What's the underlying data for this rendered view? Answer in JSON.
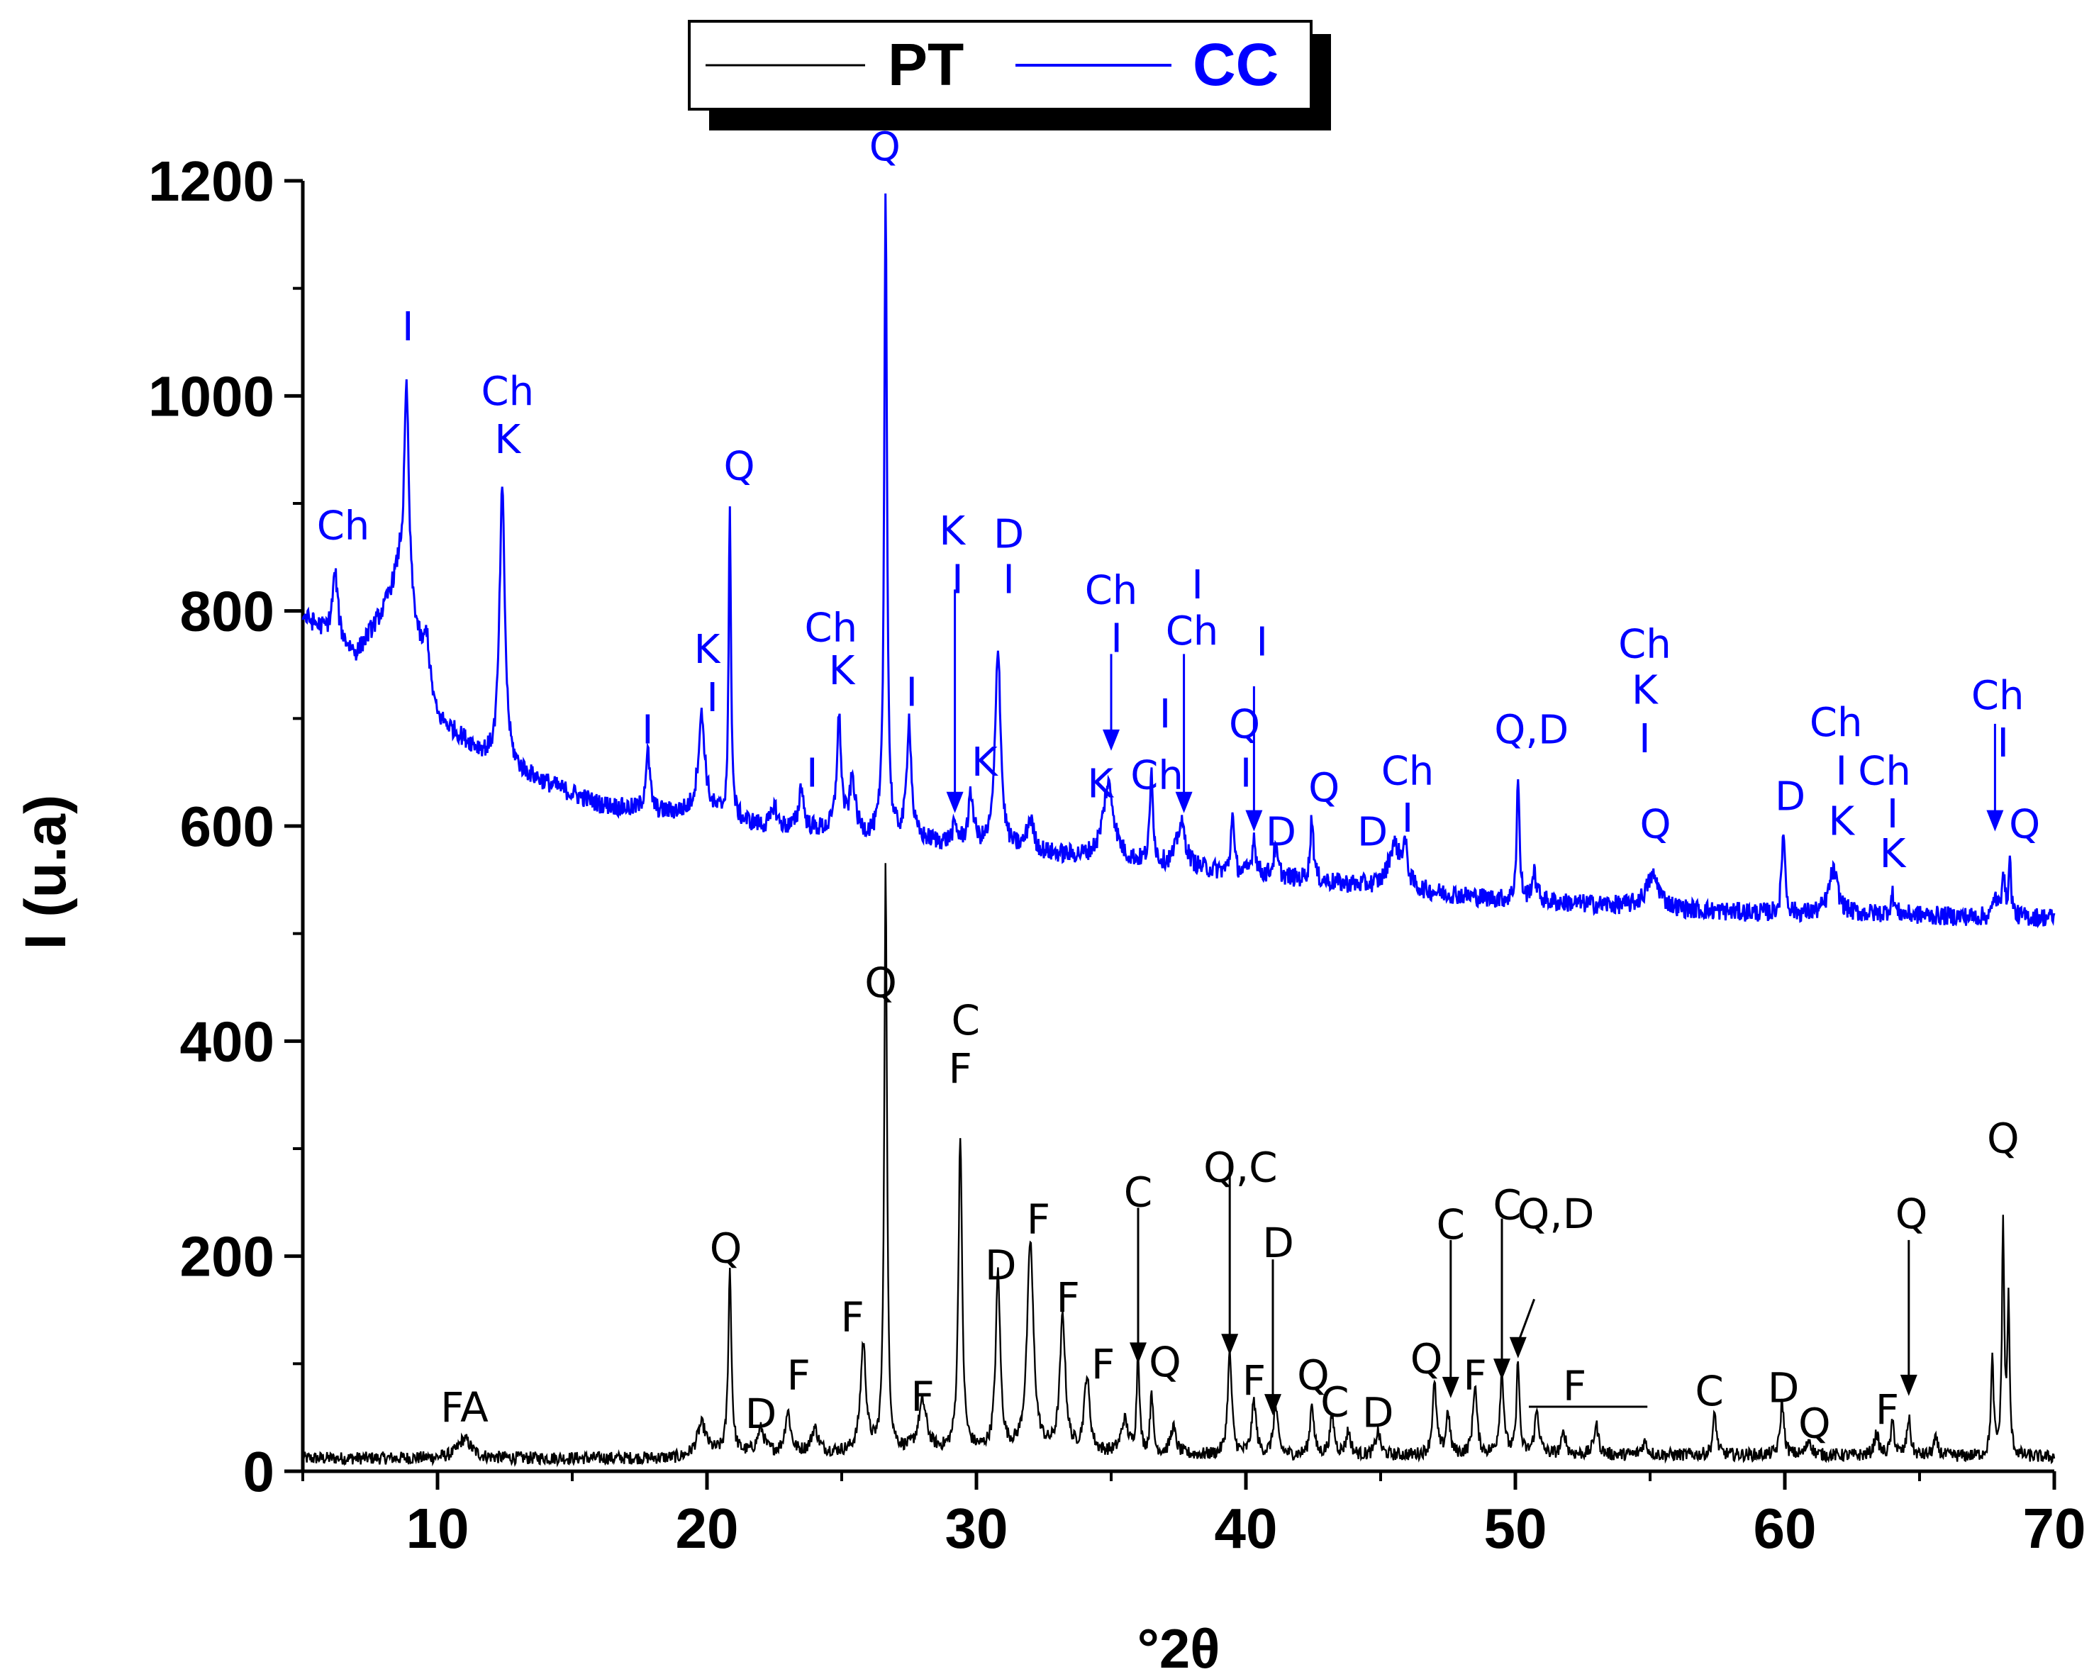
{
  "chart_data": {
    "type": "line",
    "xlabel": "°2θ",
    "ylabel": "I (u.a)",
    "xlim": [
      5,
      70
    ],
    "ylim": [
      0,
      1200
    ],
    "x_ticks": [
      10,
      20,
      30,
      40,
      50,
      60,
      70
    ],
    "y_ticks": [
      0,
      200,
      400,
      600,
      800,
      1000,
      1200
    ],
    "legend": {
      "position": "top-center",
      "entries": [
        {
          "name": "PT",
          "color": "#000000"
        },
        {
          "name": "CC",
          "color": "#0000ff"
        }
      ]
    },
    "series": [
      {
        "name": "PT",
        "color": "#000000",
        "baseline": [
          [
            5,
            12
          ],
          [
            19,
            12
          ],
          [
            20,
            16
          ],
          [
            30,
            18
          ],
          [
            40,
            14
          ],
          [
            50,
            15
          ],
          [
            60,
            15
          ],
          [
            70,
            13
          ]
        ],
        "peaks": [
          [
            11,
            18,
            0.3
          ],
          [
            19.8,
            28,
            0.2
          ],
          [
            20.85,
            170,
            0.07
          ],
          [
            22.0,
            22,
            0.15
          ],
          [
            23.0,
            38,
            0.12
          ],
          [
            24.0,
            22,
            0.15
          ],
          [
            25.8,
            100,
            0.12
          ],
          [
            26.63,
            545,
            0.06
          ],
          [
            28.0,
            45,
            0.18
          ],
          [
            29.4,
            295,
            0.08
          ],
          [
            30.8,
            165,
            0.1
          ],
          [
            32.0,
            195,
            0.14
          ],
          [
            33.2,
            125,
            0.12
          ],
          [
            34.1,
            70,
            0.12
          ],
          [
            35.5,
            30,
            0.15
          ],
          [
            36.0,
            95,
            0.06
          ],
          [
            36.5,
            60,
            0.06
          ],
          [
            37.3,
            25,
            0.12
          ],
          [
            39.4,
            95,
            0.09
          ],
          [
            40.3,
            50,
            0.1
          ],
          [
            41.1,
            45,
            0.1
          ],
          [
            42.45,
            50,
            0.08
          ],
          [
            43.2,
            35,
            0.1
          ],
          [
            43.8,
            22,
            0.1
          ],
          [
            44.9,
            22,
            0.1
          ],
          [
            47.0,
            65,
            0.09
          ],
          [
            47.5,
            40,
            0.08
          ],
          [
            48.5,
            65,
            0.09
          ],
          [
            49.5,
            75,
            0.09
          ],
          [
            50.1,
            90,
            0.06
          ],
          [
            50.8,
            40,
            0.1
          ],
          [
            51.8,
            20,
            0.1
          ],
          [
            53.0,
            28,
            0.1
          ],
          [
            54.8,
            12,
            0.12
          ],
          [
            57.4,
            38,
            0.08
          ],
          [
            59.9,
            50,
            0.08
          ],
          [
            60.9,
            15,
            0.1
          ],
          [
            63.4,
            20,
            0.1
          ],
          [
            64.0,
            30,
            0.08
          ],
          [
            64.6,
            35,
            0.08
          ],
          [
            65.6,
            15,
            0.1
          ],
          [
            67.7,
            88,
            0.06
          ],
          [
            68.1,
            215,
            0.05
          ],
          [
            68.3,
            140,
            0.05
          ]
        ]
      },
      {
        "name": "CC",
        "color": "#0000ff",
        "baseline": [
          [
            5,
            795
          ],
          [
            6,
            778
          ],
          [
            7,
            760
          ],
          [
            8,
            800
          ],
          [
            8.6,
            838
          ],
          [
            9.4,
            760
          ],
          [
            10,
            700
          ],
          [
            12,
            660
          ],
          [
            14,
            640
          ],
          [
            16,
            620
          ],
          [
            18,
            612
          ],
          [
            20,
            612
          ],
          [
            22,
            600
          ],
          [
            24,
            596
          ],
          [
            26,
            590
          ],
          [
            28,
            586
          ],
          [
            30,
            580
          ],
          [
            32,
            575
          ],
          [
            34,
            570
          ],
          [
            36,
            565
          ],
          [
            38,
            560
          ],
          [
            40,
            555
          ],
          [
            42,
            550
          ],
          [
            44,
            545
          ],
          [
            46,
            540
          ],
          [
            48,
            535
          ],
          [
            50,
            530
          ],
          [
            52,
            528
          ],
          [
            54,
            525
          ],
          [
            56,
            522
          ],
          [
            58,
            520
          ],
          [
            60,
            518
          ],
          [
            62,
            518
          ],
          [
            64,
            518
          ],
          [
            66,
            516
          ],
          [
            68,
            515
          ],
          [
            70,
            515
          ]
        ],
        "peaks": [
          [
            6.2,
            60,
            0.12
          ],
          [
            8.85,
            195,
            0.1
          ],
          [
            9.6,
            40,
            0.1
          ],
          [
            12.4,
            255,
            0.12
          ],
          [
            17.8,
            55,
            0.1
          ],
          [
            19.8,
            90,
            0.15
          ],
          [
            20.85,
            290,
            0.05
          ],
          [
            22.5,
            20,
            0.1
          ],
          [
            23.5,
            40,
            0.1
          ],
          [
            24.9,
            105,
            0.1
          ],
          [
            25.4,
            50,
            0.12
          ],
          [
            26.63,
            605,
            0.06
          ],
          [
            27.5,
            110,
            0.1
          ],
          [
            29.2,
            15,
            0.12
          ],
          [
            29.8,
            45,
            0.12
          ],
          [
            30.8,
            188,
            0.12
          ],
          [
            32.0,
            30,
            0.15
          ],
          [
            34.9,
            70,
            0.25
          ],
          [
            36.5,
            85,
            0.07
          ],
          [
            37.6,
            40,
            0.2
          ],
          [
            39.5,
            60,
            0.06
          ],
          [
            40.3,
            35,
            0.08
          ],
          [
            41.1,
            25,
            0.1
          ],
          [
            42.45,
            60,
            0.07
          ],
          [
            45.5,
            40,
            0.25
          ],
          [
            45.9,
            35,
            0.12
          ],
          [
            50.1,
            115,
            0.06
          ],
          [
            50.7,
            25,
            0.12
          ],
          [
            55.1,
            30,
            0.3
          ],
          [
            59.95,
            80,
            0.07
          ],
          [
            61.8,
            40,
            0.2
          ],
          [
            64.0,
            18,
            0.08
          ],
          [
            67.8,
            20,
            0.07
          ],
          [
            68.1,
            45,
            0.06
          ],
          [
            68.35,
            50,
            0.06
          ]
        ]
      }
    ],
    "annotations_PT": [
      {
        "text": "FA",
        "x": 11.0,
        "y": 60
      },
      {
        "text": "Q",
        "x": 20.7,
        "y": 208
      },
      {
        "text": "D",
        "x": 22.0,
        "y": 54
      },
      {
        "text": "F",
        "x": 23.4,
        "y": 90
      },
      {
        "text": "F",
        "x": 25.4,
        "y": 144
      },
      {
        "text": "Q",
        "x": 26.45,
        "y": 455
      },
      {
        "text": "F",
        "x": 28.0,
        "y": 70
      },
      {
        "text": "C",
        "x": 29.6,
        "y": 420
      },
      {
        "text": "F",
        "x": 29.4,
        "y": 375
      },
      {
        "text": "D",
        "x": 30.9,
        "y": 192
      },
      {
        "text": "F",
        "x": 32.3,
        "y": 235
      },
      {
        "text": "F",
        "x": 33.4,
        "y": 162
      },
      {
        "text": "F",
        "x": 34.7,
        "y": 100
      },
      {
        "text": "C",
        "x": 36.0,
        "y": 260
      },
      {
        "text": "Q",
        "x": 37.0,
        "y": 102
      },
      {
        "text": "Q,C",
        "x": 39.8,
        "y": 283
      },
      {
        "text": "F",
        "x": 40.3,
        "y": 85
      },
      {
        "text": "D",
        "x": 41.2,
        "y": 213
      },
      {
        "text": "Q",
        "x": 42.5,
        "y": 90
      },
      {
        "text": "C",
        "x": 43.3,
        "y": 65
      },
      {
        "text": "D",
        "x": 44.9,
        "y": 55
      },
      {
        "text": "Q",
        "x": 46.7,
        "y": 105
      },
      {
        "text": "F",
        "x": 48.5,
        "y": 90
      },
      {
        "text": "C",
        "x": 47.6,
        "y": 230
      },
      {
        "text": "C",
        "x": 49.7,
        "y": 248
      },
      {
        "text": "Q,D",
        "x": 51.5,
        "y": 240
      },
      {
        "text": "F",
        "x": 52.2,
        "y": 80
      },
      {
        "text": "C",
        "x": 57.2,
        "y": 75
      },
      {
        "text": "D",
        "x": 59.95,
        "y": 78
      },
      {
        "text": "Q",
        "x": 61.1,
        "y": 45
      },
      {
        "text": "F",
        "x": 63.8,
        "y": 58
      },
      {
        "text": "Q",
        "x": 64.7,
        "y": 240
      },
      {
        "text": "Q",
        "x": 68.1,
        "y": 310
      }
    ],
    "annotations_CC": [
      {
        "text": "Ch",
        "x": 6.5,
        "y": 880
      },
      {
        "text": "I",
        "x": 8.9,
        "y": 1065
      },
      {
        "text": "Ch",
        "x": 12.6,
        "y": 1005
      },
      {
        "text": "K",
        "x": 12.6,
        "y": 960
      },
      {
        "text": "Q",
        "x": 21.2,
        "y": 935
      },
      {
        "text": "I",
        "x": 17.8,
        "y": 690
      },
      {
        "text": "K",
        "x": 20.0,
        "y": 765
      },
      {
        "text": "I",
        "x": 20.2,
        "y": 720
      },
      {
        "text": "I",
        "x": 23.9,
        "y": 650
      },
      {
        "text": "Ch",
        "x": 24.6,
        "y": 785
      },
      {
        "text": "K",
        "x": 25.0,
        "y": 745
      },
      {
        "text": "Q",
        "x": 26.6,
        "y": 1232
      },
      {
        "text": "I",
        "x": 27.6,
        "y": 725
      },
      {
        "text": "K",
        "x": 29.1,
        "y": 875
      },
      {
        "text": "I",
        "x": 29.3,
        "y": 830
      },
      {
        "text": "K",
        "x": 30.3,
        "y": 660
      },
      {
        "text": "D",
        "x": 31.2,
        "y": 872
      },
      {
        "text": "I",
        "x": 31.2,
        "y": 830
      },
      {
        "text": "Ch",
        "x": 35.0,
        "y": 820
      },
      {
        "text": "I",
        "x": 35.2,
        "y": 775
      },
      {
        "text": "K",
        "x": 34.6,
        "y": 640
      },
      {
        "text": "I",
        "x": 38.2,
        "y": 825
      },
      {
        "text": "Ch",
        "x": 38.0,
        "y": 782
      },
      {
        "text": "I",
        "x": 37.0,
        "y": 705
      },
      {
        "text": "Ch",
        "x": 36.7,
        "y": 648
      },
      {
        "text": "I",
        "x": 40.6,
        "y": 772
      },
      {
        "text": "Q",
        "x": 39.95,
        "y": 695
      },
      {
        "text": "I",
        "x": 40.0,
        "y": 650
      },
      {
        "text": "D",
        "x": 41.3,
        "y": 595
      },
      {
        "text": "Q",
        "x": 42.9,
        "y": 636
      },
      {
        "text": "D",
        "x": 44.7,
        "y": 595
      },
      {
        "text": "Ch",
        "x": 46.0,
        "y": 652
      },
      {
        "text": "I",
        "x": 46.0,
        "y": 608
      },
      {
        "text": "Q,D",
        "x": 50.6,
        "y": 690
      },
      {
        "text": "Ch",
        "x": 54.8,
        "y": 770
      },
      {
        "text": "K",
        "x": 54.8,
        "y": 727
      },
      {
        "text": "I",
        "x": 54.8,
        "y": 682
      },
      {
        "text": "Q",
        "x": 55.2,
        "y": 602
      },
      {
        "text": "D",
        "x": 60.2,
        "y": 628
      },
      {
        "text": "Ch",
        "x": 61.9,
        "y": 697
      },
      {
        "text": "I",
        "x": 62.1,
        "y": 652
      },
      {
        "text": "K",
        "x": 62.1,
        "y": 605
      },
      {
        "text": "Ch",
        "x": 63.7,
        "y": 652
      },
      {
        "text": "I",
        "x": 64.0,
        "y": 612
      },
      {
        "text": "K",
        "x": 64.0,
        "y": 575
      },
      {
        "text": "Ch",
        "x": 67.9,
        "y": 722
      },
      {
        "text": "I",
        "x": 68.1,
        "y": 678
      },
      {
        "text": "Q",
        "x": 68.9,
        "y": 602
      }
    ],
    "arrows_PT": [
      {
        "x": 36.0,
        "y_top": 245,
        "y_tip": 100
      },
      {
        "x": 39.4,
        "y_top": 290,
        "y_tip": 108
      },
      {
        "x": 41.0,
        "y_top": 197,
        "y_tip": 52
      },
      {
        "x": 47.6,
        "y_top": 215,
        "y_tip": 68
      },
      {
        "x": 49.5,
        "y_top": 235,
        "y_tip": 85
      },
      {
        "x": 50.1,
        "y_top": 160,
        "y_tip": 105,
        "dx": 0.6
      },
      {
        "x": 64.6,
        "y_top": 215,
        "y_tip": 70
      }
    ],
    "arrows_CC": [
      {
        "x": 29.2,
        "y_top": 820,
        "y_tip": 612
      },
      {
        "x": 35.0,
        "y_top": 760,
        "y_tip": 670
      },
      {
        "x": 37.7,
        "y_top": 760,
        "y_tip": 612
      },
      {
        "x": 40.3,
        "y_top": 730,
        "y_tip": 595
      },
      {
        "x": 67.8,
        "y_top": 695,
        "y_tip": 595
      }
    ]
  }
}
